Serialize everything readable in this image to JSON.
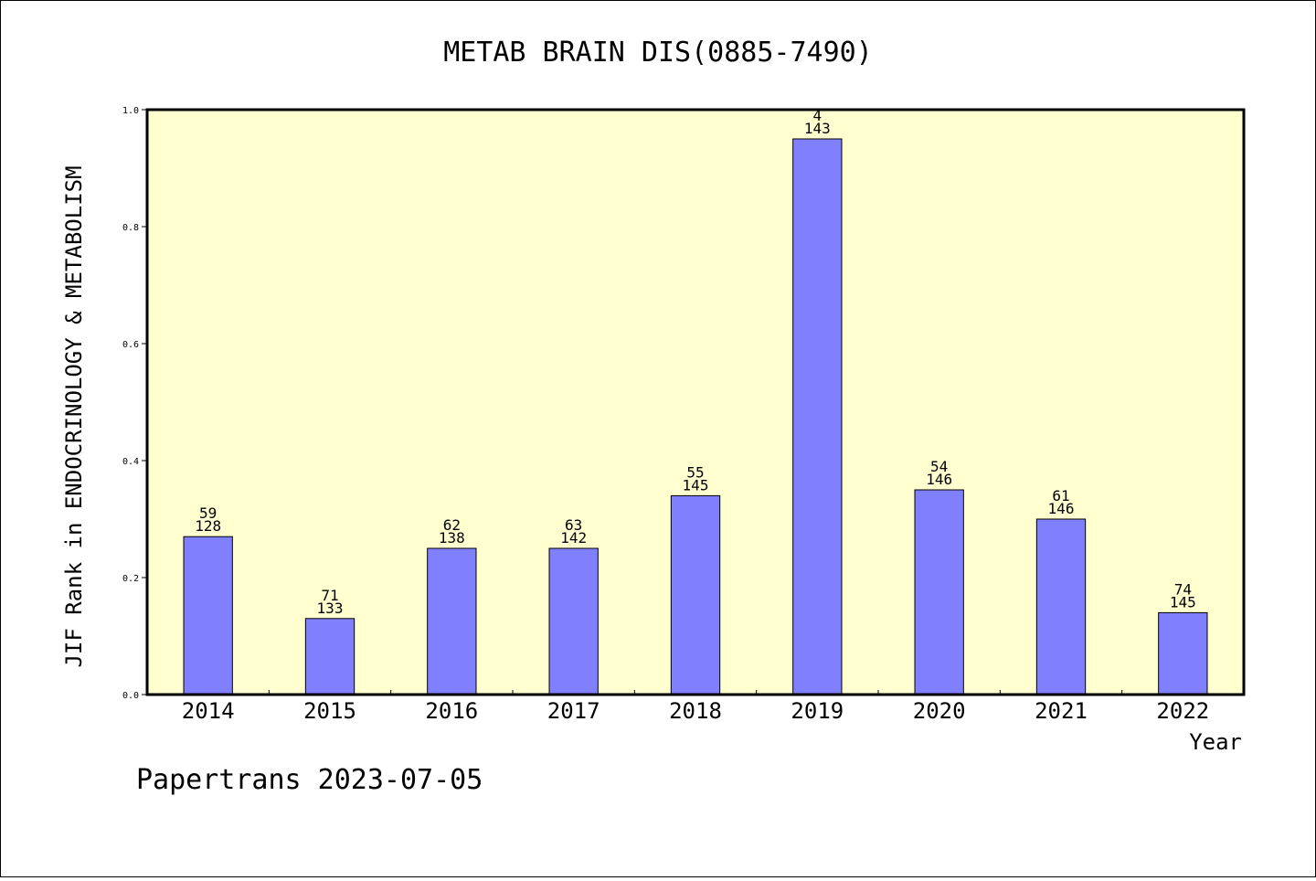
{
  "chart_data": {
    "type": "bar",
    "title": "METAB BRAIN DIS(0885-7490)",
    "xlabel": "Year",
    "ylabel": "JIF Rank in ENDOCRINOLOGY & METABOLISM",
    "ylim": [
      0,
      1.0
    ],
    "yticks": [
      "0.0",
      "0.2",
      "0.4",
      "0.6",
      "0.8",
      "1.0"
    ],
    "grid": false,
    "colors": {
      "plot_bg": "#ffffd0",
      "bar": "#8080ff",
      "bar_edge": "#000000"
    },
    "categories": [
      "2014",
      "2015",
      "2016",
      "2017",
      "2018",
      "2019",
      "2020",
      "2021",
      "2022"
    ],
    "values": [
      0.27,
      0.13,
      0.25,
      0.25,
      0.34,
      0.95,
      0.35,
      0.3,
      0.14
    ],
    "rank": [
      "59",
      "71",
      "62",
      "63",
      "55",
      "4",
      "54",
      "61",
      "74"
    ],
    "total": [
      "128",
      "133",
      "138",
      "142",
      "145",
      "143",
      "146",
      "146",
      "145"
    ]
  },
  "footer": "Papertrans 2023-07-05"
}
